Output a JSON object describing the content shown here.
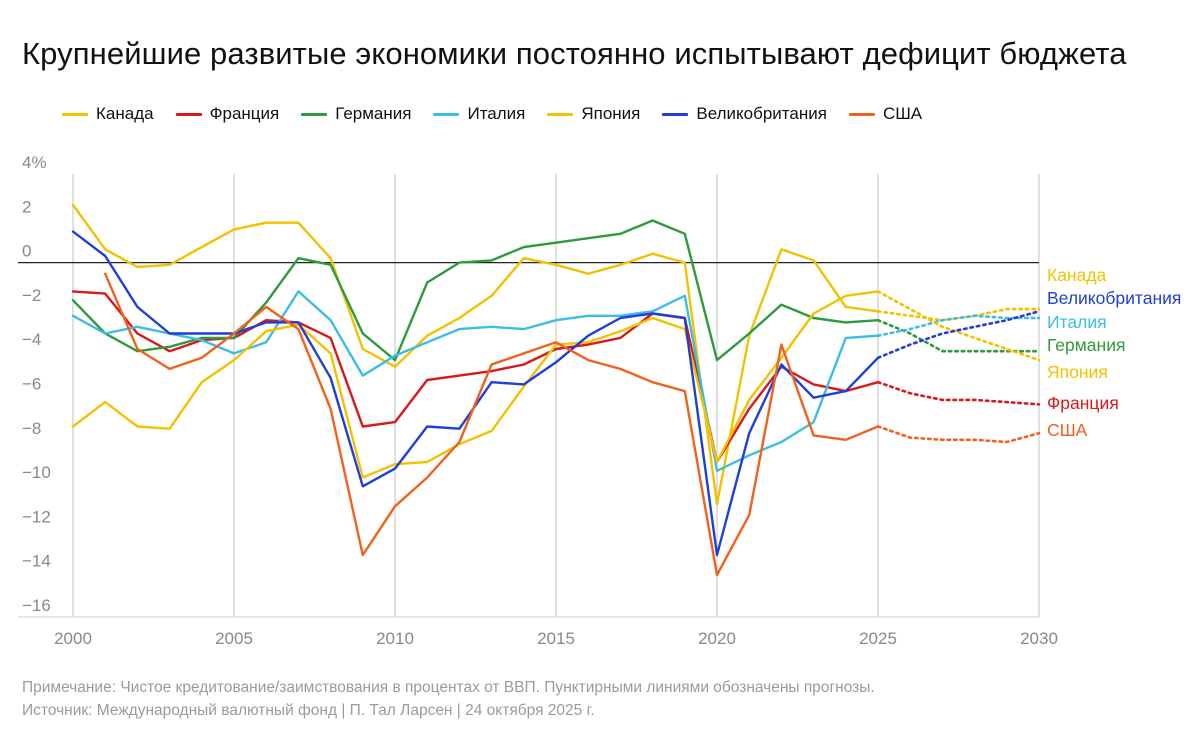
{
  "title": "Крупнейшие развитые экономики постоянно испытывают дефицит бюджета",
  "note": "Примечание: Чистое кредитование/заимствования в процентах от ВВП. Пунктирными линиями обозначены прогнозы.",
  "source": "Источник: Международный валютный фонд | П. Тал Ларсен | 24 октября 2025 г.",
  "chart_data": {
    "type": "line",
    "title": "Крупнейшие развитые экономики постоянно испытывают дефицит бюджета",
    "xlabel": "",
    "ylabel": "",
    "x_range": [
      2000,
      2030
    ],
    "ylim": [
      -16,
      4
    ],
    "x_ticks": [
      "2000",
      "2005",
      "2010",
      "2015",
      "2020",
      "2025",
      "2030"
    ],
    "y_ticks": [
      {
        "value": 4,
        "label": "4%"
      },
      {
        "value": 2,
        "label": "2"
      },
      {
        "value": 0,
        "label": "0"
      },
      {
        "value": -2,
        "label": "−2"
      },
      {
        "value": -4,
        "label": "−4"
      },
      {
        "value": -6,
        "label": "−6"
      },
      {
        "value": -8,
        "label": "−8"
      },
      {
        "value": -10,
        "label": "−10"
      },
      {
        "value": -12,
        "label": "−12"
      },
      {
        "value": -14,
        "label": "−14"
      },
      {
        "value": -16,
        "label": "−16"
      }
    ],
    "grid": "vertical",
    "forecast_from": 2025,
    "legend": "top",
    "series": [
      {
        "name": "Канада",
        "color": "#f2c200",
        "end_label": "Канада",
        "x": [
          2000,
          2001,
          2002,
          2003,
          2004,
          2005,
          2006,
          2007,
          2008,
          2009,
          2010,
          2011,
          2012,
          2013,
          2014,
          2015,
          2016,
          2017,
          2018,
          2019,
          2020,
          2021,
          2022,
          2023,
          2024,
          2025
        ],
        "values": [
          2.6,
          0.6,
          -0.2,
          -0.1,
          0.7,
          1.5,
          1.8,
          1.8,
          0.2,
          -3.9,
          -4.7,
          -3.3,
          -2.5,
          -1.5,
          0.2,
          -0.1,
          -0.5,
          -0.1,
          0.4,
          0.0,
          -10.9,
          -3.3,
          0.6,
          0.1,
          -2.0,
          -2.2
        ],
        "forecast": [
          -2.2,
          -2.4,
          -2.6,
          -2.4,
          -2.1,
          -2.1
        ]
      },
      {
        "name": "Франция",
        "color": "#d7191c",
        "end_label": "Франция",
        "x": [
          2000,
          2001,
          2002,
          2003,
          2004,
          2005,
          2006,
          2007,
          2008,
          2009,
          2010,
          2011,
          2012,
          2013,
          2014,
          2015,
          2016,
          2017,
          2018,
          2019,
          2020,
          2021,
          2022,
          2023,
          2024,
          2025
        ],
        "values": [
          -1.3,
          -1.4,
          -3.2,
          -4.0,
          -3.5,
          -3.4,
          -2.6,
          -2.7,
          -3.4,
          -7.4,
          -7.2,
          -5.3,
          -5.1,
          -4.9,
          -4.6,
          -3.9,
          -3.7,
          -3.4,
          -2.3,
          -2.5,
          -9.0,
          -6.6,
          -4.7,
          -5.5,
          -5.8,
          -5.4
        ],
        "forecast": [
          -5.4,
          -5.9,
          -6.2,
          -6.2,
          -6.3,
          -6.4
        ]
      },
      {
        "name": "Германия",
        "color": "#2e9a3e",
        "end_label": "Германия",
        "x": [
          2000,
          2001,
          2002,
          2003,
          2004,
          2005,
          2006,
          2007,
          2008,
          2009,
          2010,
          2011,
          2012,
          2013,
          2014,
          2015,
          2016,
          2017,
          2018,
          2019,
          2020,
          2021,
          2022,
          2023,
          2024,
          2025
        ],
        "values": [
          -1.7,
          -3.2,
          -4.0,
          -3.8,
          -3.4,
          -3.4,
          -1.8,
          0.2,
          -0.1,
          -3.2,
          -4.4,
          -0.9,
          0.0,
          0.1,
          0.7,
          0.9,
          1.1,
          1.3,
          1.9,
          1.3,
          -4.4,
          -3.2,
          -1.9,
          -2.5,
          -2.7,
          -2.6
        ],
        "forecast": [
          -2.6,
          -3.2,
          -4.0,
          -4.0,
          -4.0,
          -4.0
        ]
      },
      {
        "name": "Италия",
        "color": "#3cbde6",
        "end_label": "Италия",
        "x": [
          2000,
          2001,
          2002,
          2003,
          2004,
          2005,
          2006,
          2007,
          2008,
          2009,
          2010,
          2011,
          2012,
          2013,
          2014,
          2015,
          2016,
          2017,
          2018,
          2019,
          2020,
          2021,
          2022,
          2023,
          2024,
          2025
        ],
        "values": [
          -2.4,
          -3.2,
          -2.9,
          -3.2,
          -3.5,
          -4.1,
          -3.6,
          -1.3,
          -2.6,
          -5.1,
          -4.2,
          -3.6,
          -3.0,
          -2.9,
          -3.0,
          -2.6,
          -2.4,
          -2.4,
          -2.2,
          -1.5,
          -9.4,
          -8.7,
          -8.1,
          -7.2,
          -3.4,
          -3.3
        ],
        "forecast": [
          -3.3,
          -3.0,
          -2.6,
          -2.4,
          -2.5,
          -2.5
        ]
      },
      {
        "name": "Япония",
        "color": "#f2c200",
        "end_label": "Япония",
        "x": [
          2000,
          2001,
          2002,
          2003,
          2004,
          2005,
          2006,
          2007,
          2008,
          2009,
          2010,
          2011,
          2012,
          2013,
          2014,
          2015,
          2016,
          2017,
          2018,
          2019,
          2020,
          2021,
          2022,
          2023,
          2024,
          2025
        ],
        "values": [
          -7.4,
          -6.3,
          -7.4,
          -7.5,
          -5.4,
          -4.4,
          -3.1,
          -2.8,
          -4.1,
          -9.7,
          -9.1,
          -9.0,
          -8.2,
          -7.6,
          -5.6,
          -3.7,
          -3.6,
          -3.1,
          -2.5,
          -3.0,
          -9.0,
          -6.2,
          -4.3,
          -2.3,
          -1.5,
          -1.3
        ],
        "forecast": [
          -1.3,
          -2.1,
          -2.9,
          -3.4,
          -3.9,
          -4.4
        ]
      },
      {
        "name": "Великобритания",
        "color": "#1f3fd6",
        "end_label": "Великобритания",
        "x": [
          2000,
          2001,
          2002,
          2003,
          2004,
          2005,
          2006,
          2007,
          2008,
          2009,
          2010,
          2011,
          2012,
          2013,
          2014,
          2015,
          2016,
          2017,
          2018,
          2019,
          2020,
          2021,
          2022,
          2023,
          2024,
          2025
        ],
        "values": [
          1.4,
          0.3,
          -2.0,
          -3.2,
          -3.2,
          -3.2,
          -2.7,
          -2.7,
          -5.2,
          -10.1,
          -9.3,
          -7.4,
          -7.5,
          -5.4,
          -5.5,
          -4.5,
          -3.3,
          -2.5,
          -2.3,
          -2.5,
          -13.2,
          -7.7,
          -4.6,
          -6.1,
          -5.8,
          -4.3
        ],
        "forecast": [
          -4.3,
          -3.7,
          -3.2,
          -2.9,
          -2.6,
          -2.2
        ]
      },
      {
        "name": "США",
        "color": "#f0611c",
        "end_label": "США",
        "x": [
          2001,
          2002,
          2003,
          2004,
          2005,
          2006,
          2007,
          2008,
          2009,
          2010,
          2011,
          2012,
          2013,
          2014,
          2015,
          2016,
          2017,
          2018,
          2019,
          2020,
          2021,
          2022,
          2023,
          2024,
          2025
        ],
        "values": [
          -0.5,
          -3.9,
          -4.8,
          -4.3,
          -3.2,
          -2.0,
          -3.0,
          -6.6,
          -13.2,
          -11.0,
          -9.7,
          -8.1,
          -4.6,
          -4.1,
          -3.6,
          -4.4,
          -4.8,
          -5.4,
          -5.8,
          -14.1,
          -11.4,
          -3.7,
          -7.8,
          -8.0,
          -7.4
        ],
        "forecast": [
          -7.4,
          -7.9,
          -8.0,
          -8.0,
          -8.1,
          -7.7
        ]
      }
    ]
  }
}
